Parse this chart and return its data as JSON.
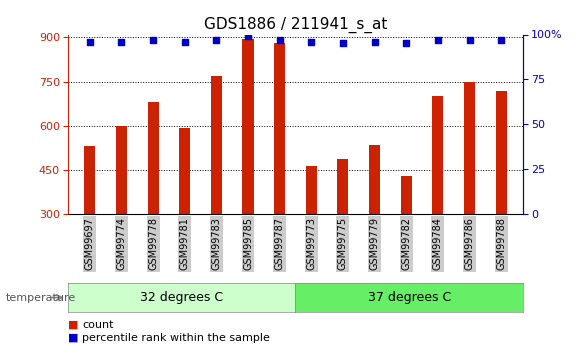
{
  "title": "GDS1886 / 211941_s_at",
  "samples": [
    "GSM99697",
    "GSM99774",
    "GSM99778",
    "GSM99781",
    "GSM99783",
    "GSM99785",
    "GSM99787",
    "GSM99773",
    "GSM99775",
    "GSM99779",
    "GSM99782",
    "GSM99784",
    "GSM99786",
    "GSM99788"
  ],
  "counts": [
    530,
    600,
    680,
    593,
    770,
    895,
    880,
    463,
    487,
    535,
    430,
    700,
    748,
    718
  ],
  "percentiles": [
    96,
    96,
    97,
    96,
    97,
    99,
    97,
    96,
    95,
    96,
    95,
    97,
    97,
    97
  ],
  "group1_label": "32 degrees C",
  "group2_label": "37 degrees C",
  "group1_count": 7,
  "group2_count": 7,
  "ylim": [
    300,
    910
  ],
  "yticks": [
    300,
    450,
    600,
    750,
    900
  ],
  "right_yticks": [
    0,
    25,
    50,
    75,
    100
  ],
  "right_ylim": [
    0,
    100
  ],
  "bar_color": "#cc2200",
  "dot_color": "#0000cc",
  "group1_bg": "#ccffcc",
  "group2_bg": "#66ee66",
  "sample_bg": "#cccccc",
  "title_fontsize": 11,
  "tick_fontsize": 8,
  "label_fontsize": 8,
  "legend_count_label": "count",
  "legend_pct_label": "percentile rank within the sample",
  "temperature_label": "temperature"
}
